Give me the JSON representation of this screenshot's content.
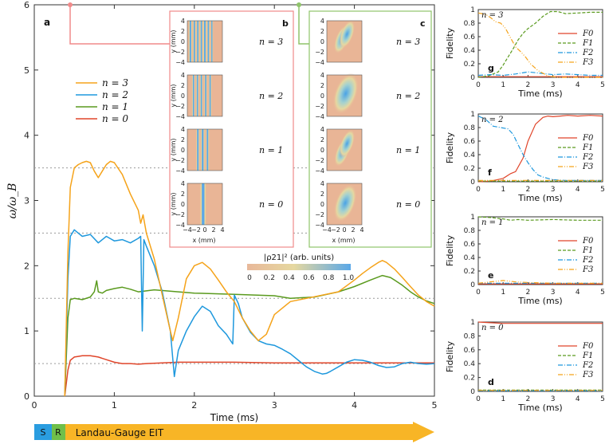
{
  "chart_data": [
    {
      "id": "main",
      "type": "line",
      "panel_label": "a",
      "xlabel": "Time (ms)",
      "ylabel": "ω/ω_B",
      "xlim": [
        0,
        5
      ],
      "ylim": [
        0,
        6
      ],
      "x_ticks": [
        "0",
        "1",
        "2",
        "3",
        "4",
        "5"
      ],
      "y_ticks": [
        "0",
        "1",
        "2",
        "3",
        "4",
        "5",
        "6"
      ],
      "reference_levels": [
        0.5,
        1.5,
        2.5,
        3.5
      ],
      "legend": [
        "n = 3",
        "n = 2",
        "n = 1",
        "n = 0"
      ],
      "series": [
        {
          "name": "n = 3",
          "color": "#f5a31a",
          "x": [
            0.38,
            0.42,
            0.45,
            0.5,
            0.55,
            0.6,
            0.65,
            0.7,
            0.75,
            0.8,
            0.85,
            0.9,
            0.95,
            1.0,
            1.1,
            1.2,
            1.3,
            1.33,
            1.36,
            1.4,
            1.5,
            1.6,
            1.7,
            1.73,
            1.8,
            1.9,
            2.0,
            2.1,
            2.2,
            2.3,
            2.4,
            2.5,
            2.6,
            2.7,
            2.8,
            2.9,
            3.0,
            3.2,
            3.4,
            3.6,
            3.8,
            4.0,
            4.1,
            4.2,
            4.3,
            4.35,
            4.4,
            4.5,
            4.6,
            4.7,
            4.8,
            4.9,
            5.0
          ],
          "y": [
            0,
            2.2,
            3.2,
            3.5,
            3.55,
            3.58,
            3.6,
            3.58,
            3.45,
            3.35,
            3.45,
            3.55,
            3.6,
            3.58,
            3.4,
            3.1,
            2.85,
            2.65,
            2.78,
            2.5,
            2.1,
            1.55,
            1.0,
            0.85,
            1.2,
            1.8,
            2.0,
            2.05,
            1.95,
            1.78,
            1.6,
            1.45,
            1.2,
            1.0,
            0.85,
            0.95,
            1.25,
            1.45,
            1.5,
            1.55,
            1.6,
            1.78,
            1.88,
            1.97,
            2.05,
            2.08,
            2.05,
            1.95,
            1.82,
            1.68,
            1.55,
            1.45,
            1.38
          ]
        },
        {
          "name": "n = 2",
          "color": "#1e98dd",
          "x": [
            0.38,
            0.42,
            0.45,
            0.5,
            0.55,
            0.6,
            0.7,
            0.8,
            0.9,
            1.0,
            1.1,
            1.2,
            1.3,
            1.33,
            1.35,
            1.37,
            1.4,
            1.5,
            1.6,
            1.7,
            1.75,
            1.8,
            1.9,
            2.0,
            2.1,
            2.2,
            2.3,
            2.4,
            2.48,
            2.5,
            2.55,
            2.6,
            2.7,
            2.8,
            2.9,
            3.0,
            3.1,
            3.2,
            3.3,
            3.4,
            3.5,
            3.6,
            3.65,
            3.7,
            3.8,
            3.9,
            4.0,
            4.1,
            4.2,
            4.3,
            4.4,
            4.5,
            4.6,
            4.7,
            4.8,
            4.9,
            5.0
          ],
          "y": [
            0,
            1.8,
            2.45,
            2.55,
            2.5,
            2.45,
            2.48,
            2.35,
            2.45,
            2.38,
            2.4,
            2.35,
            2.42,
            2.45,
            1.0,
            2.4,
            2.3,
            2.0,
            1.6,
            1.0,
            0.3,
            0.7,
            1.0,
            1.22,
            1.38,
            1.3,
            1.08,
            0.95,
            0.8,
            1.55,
            1.42,
            1.2,
            0.98,
            0.85,
            0.8,
            0.78,
            0.72,
            0.65,
            0.55,
            0.45,
            0.38,
            0.34,
            0.35,
            0.38,
            0.45,
            0.52,
            0.56,
            0.55,
            0.52,
            0.47,
            0.44,
            0.45,
            0.5,
            0.52,
            0.5,
            0.49,
            0.5
          ]
        },
        {
          "name": "n = 1",
          "color": "#5a9a1e",
          "x": [
            0.38,
            0.42,
            0.45,
            0.5,
            0.6,
            0.7,
            0.75,
            0.78,
            0.8,
            0.85,
            0.9,
            1.0,
            1.1,
            1.2,
            1.3,
            1.5,
            1.8,
            2.0,
            2.5,
            3.0,
            3.2,
            3.5,
            3.8,
            4.0,
            4.2,
            4.35,
            4.45,
            4.5,
            4.6,
            4.7,
            4.8,
            4.9,
            5.0
          ],
          "y": [
            0,
            1.2,
            1.48,
            1.5,
            1.48,
            1.52,
            1.6,
            1.77,
            1.6,
            1.58,
            1.62,
            1.65,
            1.67,
            1.64,
            1.6,
            1.63,
            1.6,
            1.58,
            1.56,
            1.54,
            1.5,
            1.52,
            1.6,
            1.68,
            1.78,
            1.85,
            1.82,
            1.78,
            1.7,
            1.6,
            1.52,
            1.46,
            1.42
          ]
        },
        {
          "name": "n = 0",
          "color": "#e0452a",
          "x": [
            0.38,
            0.42,
            0.45,
            0.5,
            0.55,
            0.6,
            0.7,
            0.8,
            0.9,
            1.0,
            1.1,
            1.2,
            1.3,
            1.4,
            1.6,
            1.8,
            2.0,
            2.5,
            3.0,
            4.0,
            5.0
          ],
          "y": [
            0,
            0.4,
            0.55,
            0.6,
            0.61,
            0.62,
            0.62,
            0.6,
            0.56,
            0.52,
            0.5,
            0.5,
            0.49,
            0.5,
            0.51,
            0.52,
            0.52,
            0.52,
            0.51,
            0.51,
            0.51
          ]
        }
      ]
    },
    {
      "id": "g",
      "type": "line",
      "panel_label": "g",
      "n_label": "n = 3",
      "xlabel": "Time (ms)",
      "ylabel": "Fidelity",
      "xlim": [
        0,
        5
      ],
      "ylim": [
        0,
        1
      ],
      "x_ticks": [
        "0",
        "1",
        "2",
        "3",
        "4",
        "5"
      ],
      "y_ticks": [
        "0",
        "0.2",
        "0.4",
        "0.6",
        "0.8",
        "1"
      ],
      "legend": [
        "F0",
        "F1",
        "F2",
        "F3"
      ],
      "series": [
        {
          "name": "F0",
          "color": "#e0452a",
          "dash": "",
          "x": [
            0,
            5
          ],
          "y": [
            0.01,
            0.01
          ]
        },
        {
          "name": "F1",
          "color": "#5a9a1e",
          "dash": "4,2",
          "x": [
            0,
            0.4,
            0.8,
            1.0,
            1.2,
            1.4,
            1.6,
            1.8,
            2.0,
            2.3,
            2.6,
            2.9,
            3.2,
            3.5,
            4.0,
            4.5,
            5.0
          ],
          "y": [
            0.0,
            0.02,
            0.08,
            0.18,
            0.3,
            0.42,
            0.55,
            0.65,
            0.72,
            0.8,
            0.9,
            0.97,
            0.97,
            0.94,
            0.95,
            0.96,
            0.96
          ]
        },
        {
          "name": "F2",
          "color": "#1e98dd",
          "dash": "6,2,1,2",
          "x": [
            0,
            0.5,
            1.0,
            1.5,
            2.0,
            2.5,
            3.0,
            3.5,
            4.0,
            4.5,
            5.0
          ],
          "y": [
            0.03,
            0.04,
            0.03,
            0.05,
            0.08,
            0.06,
            0.04,
            0.05,
            0.04,
            0.03,
            0.03
          ]
        },
        {
          "name": "F3",
          "color": "#f5a31a",
          "dash": "6,2,1,2,1,2",
          "x": [
            0,
            0.3,
            0.5,
            0.7,
            0.9,
            1.1,
            1.3,
            1.5,
            1.7,
            1.9,
            2.1,
            2.4,
            2.8,
            3.2,
            4.0,
            5.0
          ],
          "y": [
            0.95,
            0.93,
            0.88,
            0.82,
            0.8,
            0.72,
            0.58,
            0.45,
            0.38,
            0.3,
            0.2,
            0.1,
            0.02,
            0.0,
            0.0,
            0.0
          ]
        }
      ]
    },
    {
      "id": "f",
      "type": "line",
      "panel_label": "f",
      "n_label": "n = 2",
      "xlabel": "Time (ms)",
      "ylabel": "Fidelity",
      "xlim": [
        0,
        5
      ],
      "ylim": [
        0,
        1
      ],
      "x_ticks": [
        "0",
        "1",
        "2",
        "3",
        "4",
        "5"
      ],
      "y_ticks": [
        "0",
        "0.2",
        "0.4",
        "0.6",
        "0.8",
        "1"
      ],
      "legend": [
        "F0",
        "F1",
        "F2",
        "F3"
      ],
      "series": [
        {
          "name": "F0",
          "color": "#e0452a",
          "dash": "",
          "x": [
            0,
            0.5,
            1.0,
            1.3,
            1.5,
            1.8,
            2.0,
            2.3,
            2.6,
            2.8,
            3.0,
            3.3,
            3.6,
            4.0,
            4.5,
            5.0
          ],
          "y": [
            0.0,
            0.01,
            0.05,
            0.12,
            0.15,
            0.35,
            0.6,
            0.85,
            0.95,
            0.97,
            0.96,
            0.97,
            0.98,
            0.97,
            0.98,
            0.97
          ]
        },
        {
          "name": "F1",
          "color": "#5a9a1e",
          "dash": "4,2",
          "x": [
            0,
            5
          ],
          "y": [
            0.01,
            0.01
          ]
        },
        {
          "name": "F2",
          "color": "#1e98dd",
          "dash": "6,2,1,2",
          "x": [
            0,
            0.3,
            0.6,
            0.9,
            1.2,
            1.4,
            1.6,
            1.8,
            2.0,
            2.2,
            2.4,
            2.6,
            2.8,
            3.0,
            3.5,
            4.0,
            5.0
          ],
          "y": [
            0.97,
            0.92,
            0.82,
            0.8,
            0.78,
            0.7,
            0.55,
            0.4,
            0.28,
            0.18,
            0.1,
            0.07,
            0.05,
            0.03,
            0.02,
            0.02,
            0.02
          ]
        },
        {
          "name": "F3",
          "color": "#f5a31a",
          "dash": "6,2,1,2,1,2",
          "x": [
            0,
            5
          ],
          "y": [
            0.02,
            0.02
          ]
        }
      ]
    },
    {
      "id": "e",
      "type": "line",
      "panel_label": "e",
      "n_label": "n = 1",
      "xlabel": "Time (ms)",
      "ylabel": "Fidelity",
      "xlim": [
        0,
        5
      ],
      "ylim": [
        0,
        1
      ],
      "x_ticks": [
        "0",
        "1",
        "2",
        "3",
        "4",
        "5"
      ],
      "y_ticks": [
        "0",
        "0.2",
        "0.4",
        "0.6",
        "0.8",
        "1"
      ],
      "legend": [
        "F0",
        "F1",
        "F2",
        "F3"
      ],
      "series": [
        {
          "name": "F0",
          "color": "#e0452a",
          "dash": "",
          "x": [
            0,
            5
          ],
          "y": [
            0.01,
            0.01
          ]
        },
        {
          "name": "F1",
          "color": "#5a9a1e",
          "dash": "4,2",
          "x": [
            0,
            0.5,
            1.0,
            1.3,
            1.6,
            2.0,
            3.0,
            4.0,
            5.0
          ],
          "y": [
            1.0,
            0.99,
            0.97,
            0.95,
            0.96,
            0.95,
            0.96,
            0.95,
            0.95
          ]
        },
        {
          "name": "F2",
          "color": "#1e98dd",
          "dash": "6,2,1,2",
          "x": [
            0,
            5
          ],
          "y": [
            0.02,
            0.02
          ]
        },
        {
          "name": "F3",
          "color": "#f5a31a",
          "dash": "6,2,1,2,1,2",
          "x": [
            0,
            1.0,
            1.5,
            2.0,
            3.0,
            5.0
          ],
          "y": [
            0.02,
            0.06,
            0.04,
            0.03,
            0.02,
            0.02
          ]
        }
      ]
    },
    {
      "id": "d",
      "type": "line",
      "panel_label": "d",
      "n_label": "n = 0",
      "xlabel": "Time (ms)",
      "ylabel": "Fidelity",
      "xlim": [
        0,
        5
      ],
      "ylim": [
        0,
        1
      ],
      "x_ticks": [
        "0",
        "1",
        "2",
        "3",
        "4",
        "5"
      ],
      "y_ticks": [
        "0",
        "0.2",
        "0.4",
        "0.6",
        "0.8",
        "1"
      ],
      "legend": [
        "F0",
        "F1",
        "F2",
        "F3"
      ],
      "series": [
        {
          "name": "F0",
          "color": "#e0452a",
          "dash": "",
          "x": [
            0,
            0.5,
            1.0,
            2.0,
            3.0,
            4.0,
            5.0
          ],
          "y": [
            1.0,
            0.99,
            0.98,
            0.98,
            0.98,
            0.98,
            0.98
          ]
        },
        {
          "name": "F1",
          "color": "#5a9a1e",
          "dash": "4,2",
          "x": [
            0,
            5
          ],
          "y": [
            0.02,
            0.02
          ]
        },
        {
          "name": "F2",
          "color": "#1e98dd",
          "dash": "6,2,1,2",
          "x": [
            0,
            5
          ],
          "y": [
            0.01,
            0.01
          ]
        },
        {
          "name": "F3",
          "color": "#f5a31a",
          "dash": "6,2,1,2,1,2",
          "x": [
            0,
            5
          ],
          "y": [
            0.015,
            0.015
          ]
        }
      ]
    }
  ],
  "insets": {
    "b": {
      "label": "b",
      "border_color": "#f08a8a",
      "rows": [
        "n = 3",
        "n = 2",
        "n = 1",
        "n = 0"
      ],
      "ylabel": "y (mm)",
      "xlabel": "x (mm)",
      "ticks": [
        "−4",
        "−2",
        "0",
        "2",
        "4"
      ]
    },
    "c": {
      "label": "c",
      "border_color": "#8fc46a",
      "rows": [
        "n = 3",
        "n = 2",
        "n = 1",
        "n = 0"
      ],
      "xlabel": "x (mm)"
    }
  },
  "colorbar": {
    "label": "|ρ21|² (arb. units)",
    "ticks": [
      "0",
      "0.2",
      "0.4",
      "0.6",
      "0.8",
      "1.0"
    ]
  },
  "timeline": {
    "s": "S",
    "r": "R",
    "label": "Landau-Gauge EIT"
  }
}
